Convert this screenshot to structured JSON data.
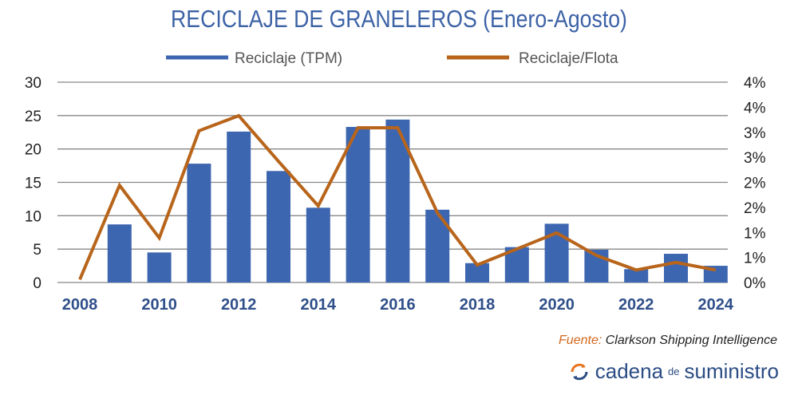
{
  "chart_data": {
    "type": "bar+line",
    "title": "RECICLAJE DE GRANELEROS (Enero-Agosto)",
    "categories": [
      2008,
      2009,
      2010,
      2011,
      2012,
      2013,
      2014,
      2015,
      2016,
      2017,
      2018,
      2019,
      2020,
      2021,
      2022,
      2023,
      2024
    ],
    "x_tick_labels": [
      "2008",
      "2010",
      "2012",
      "2014",
      "2016",
      "2018",
      "2020",
      "2022",
      "2024"
    ],
    "series": [
      {
        "name": "Reciclaje (TPM)",
        "type": "bar",
        "axis": "left",
        "color": "#3d66b0",
        "values": [
          0,
          8.7,
          4.5,
          17.8,
          22.6,
          16.7,
          11.2,
          23.3,
          24.4,
          10.9,
          2.9,
          5.3,
          8.8,
          4.9,
          2.0,
          4.3,
          2.5
        ]
      },
      {
        "name": "Reciclaje/Flota",
        "type": "line",
        "axis": "right",
        "color": "#b8651b",
        "values": [
          0.06,
          1.94,
          0.89,
          3.03,
          3.33,
          2.42,
          1.53,
          3.09,
          3.09,
          1.39,
          0.35,
          0.67,
          0.99,
          0.54,
          0.25,
          0.4,
          0.25
        ]
      }
    ],
    "left_axis": {
      "ylim": [
        0,
        30
      ],
      "ticks": [
        "0",
        "5",
        "10",
        "15",
        "20",
        "25",
        "30"
      ]
    },
    "right_axis": {
      "ylim": [
        0,
        4
      ],
      "unit": "%",
      "ticks": [
        "0%",
        "1%",
        "1%",
        "2%",
        "2%",
        "3%",
        "3%",
        "4%",
        "4%"
      ]
    },
    "grid": true,
    "legend_position": "top"
  },
  "source": {
    "label": "Fuente:",
    "text": "Clarkson Shipping Intelligence"
  },
  "logo": {
    "text1": "cadena",
    "text2": "de",
    "text3": "suministro"
  }
}
